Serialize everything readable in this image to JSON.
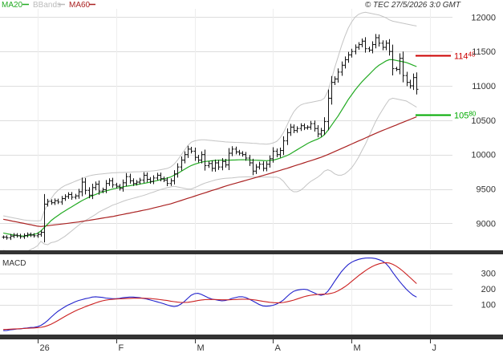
{
  "header": {
    "copyright": "© TEC 27/5/2026 3:0 GMT"
  },
  "legend": [
    {
      "label": "MA20",
      "color": "#22aa22"
    },
    {
      "label": "BBands",
      "color": "#bbbbbb"
    },
    {
      "label": "MA60",
      "color": "#aa2222"
    }
  ],
  "colors": {
    "price": "#111111",
    "ma20": "#22aa22",
    "ma60": "#aa2222",
    "bbands": "#c4c4c4",
    "macd": "#2222cc",
    "signal": "#cc2222",
    "resistance": "#cc0000",
    "support": "#00aa00",
    "grid": "#dddddd"
  },
  "chart_data": [
    {
      "type": "ohlc",
      "panel": "price",
      "y_ticks": [
        9000,
        9500,
        10000,
        10500,
        11000,
        11500,
        12000
      ],
      "y_tick_labels": [
        "9000",
        "9500",
        "10000",
        "10500",
        "11000",
        "11500",
        "12000"
      ],
      "ylim": [
        8620,
        12120
      ],
      "x_labels": [
        "26",
        "F",
        "M",
        "A",
        "M",
        "J"
      ],
      "x_label_index": [
        10,
        33,
        56,
        79,
        102,
        125
      ],
      "n_slots": 132,
      "levels": [
        {
          "name": "resistance",
          "value": 11448,
          "label_int": "114",
          "label_dec": "48"
        },
        {
          "name": "support",
          "value": 10580,
          "label_int": "105",
          "label_dec": "80"
        }
      ],
      "close": [
        8800,
        8790,
        8815,
        8830,
        8820,
        8805,
        8825,
        8840,
        8830,
        8820,
        8840,
        8870,
        9280,
        9320,
        9300,
        9330,
        9310,
        9360,
        9390,
        9420,
        9380,
        9400,
        9460,
        9600,
        9480,
        9410,
        9520,
        9570,
        9470,
        9490,
        9580,
        9620,
        9560,
        9540,
        9510,
        9590,
        9680,
        9620,
        9580,
        9600,
        9630,
        9700,
        9640,
        9610,
        9660,
        9700,
        9650,
        9630,
        9580,
        9620,
        9720,
        9820,
        9920,
        10000,
        10080,
        10050,
        9960,
        9920,
        10000,
        9840,
        9870,
        9800,
        9880,
        9820,
        9900,
        9850,
        10020,
        10080,
        10040,
        10020,
        10000,
        9950,
        9880,
        9760,
        9820,
        9860,
        9800,
        9860,
        9940,
        10050,
        10000,
        10060,
        10200,
        10320,
        10400,
        10350,
        10380,
        10420,
        10390,
        10400,
        10450,
        10380,
        10300,
        10350,
        10480,
        10820,
        11050,
        11100,
        11200,
        11300,
        11380,
        11450,
        11500,
        11560,
        11600,
        11650,
        11540,
        11520,
        11600,
        11700,
        11620,
        11560,
        11620,
        11500,
        11250,
        11240,
        11400,
        11150,
        11050,
        11000,
        11120,
        10950
      ],
      "ma20": [
        8860,
        8850,
        8840,
        8830,
        8822,
        8818,
        8815,
        8820,
        8830,
        8840,
        8855,
        8890,
        8940,
        8990,
        9040,
        9080,
        9115,
        9150,
        9180,
        9210,
        9240,
        9270,
        9300,
        9330,
        9355,
        9380,
        9400,
        9420,
        9440,
        9455,
        9470,
        9485,
        9500,
        9510,
        9520,
        9530,
        9540,
        9548,
        9556,
        9564,
        9572,
        9580,
        9590,
        9600,
        9610,
        9622,
        9635,
        9648,
        9660,
        9675,
        9700,
        9725,
        9755,
        9785,
        9815,
        9840,
        9860,
        9875,
        9890,
        9900,
        9905,
        9910,
        9915,
        9918,
        9920,
        9920,
        9920,
        9921,
        9922,
        9924,
        9925,
        9924,
        9922,
        9920,
        9918,
        9916,
        9914,
        9912,
        9915,
        9920,
        9932,
        9948,
        9966,
        9985,
        10010,
        10040,
        10070,
        10100,
        10130,
        10160,
        10185,
        10205,
        10225,
        10250,
        10290,
        10350,
        10420,
        10490,
        10560,
        10640,
        10720,
        10800,
        10870,
        10940,
        11000,
        11060,
        11110,
        11160,
        11210,
        11260,
        11300,
        11330,
        11360,
        11380,
        11380,
        11370,
        11360,
        11350,
        11340,
        11320,
        11300,
        11280
      ],
      "ma60": [
        9060,
        9050,
        9040,
        9030,
        9020,
        9010,
        9000,
        8990,
        8980,
        8970,
        8960,
        8955,
        8960,
        8966,
        8972,
        8978,
        8984,
        8990,
        8996,
        9002,
        9008,
        9014,
        9020,
        9028,
        9036,
        9044,
        9052,
        9060,
        9068,
        9076,
        9084,
        9092,
        9100,
        9110,
        9120,
        9130,
        9140,
        9150,
        9160,
        9170,
        9180,
        9190,
        9200,
        9212,
        9224,
        9236,
        9248,
        9260,
        9272,
        9284,
        9300,
        9316,
        9332,
        9348,
        9364,
        9380,
        9396,
        9412,
        9428,
        9444,
        9460,
        9476,
        9492,
        9508,
        9524,
        9540,
        9556,
        9570,
        9584,
        9598,
        9612,
        9626,
        9640,
        9654,
        9668,
        9682,
        9696,
        9710,
        9725,
        9740,
        9755,
        9770,
        9785,
        9800,
        9816,
        9832,
        9848,
        9864,
        9880,
        9896,
        9912,
        9928,
        9944,
        9960,
        9980,
        10000,
        10022,
        10044,
        10066,
        10088,
        10110,
        10132,
        10154,
        10176,
        10198,
        10220,
        10242,
        10264,
        10286,
        10308,
        10330,
        10350,
        10370,
        10390,
        10410,
        10430,
        10450,
        10470,
        10490,
        10510,
        10530,
        10550
      ],
      "bb_upper": [
        9110,
        9100,
        9090,
        9080,
        9070,
        9060,
        9050,
        9045,
        9040,
        9038,
        9036,
        9040,
        9180,
        9290,
        9360,
        9430,
        9480,
        9520,
        9550,
        9570,
        9590,
        9610,
        9630,
        9650,
        9670,
        9690,
        9700,
        9710,
        9715,
        9720,
        9725,
        9730,
        9735,
        9738,
        9740,
        9740,
        9742,
        9745,
        9748,
        9750,
        9752,
        9755,
        9758,
        9760,
        9765,
        9770,
        9780,
        9790,
        9800,
        9820,
        9860,
        9920,
        9990,
        10060,
        10130,
        10180,
        10200,
        10210,
        10215,
        10215,
        10210,
        10205,
        10200,
        10195,
        10190,
        10185,
        10182,
        10180,
        10178,
        10176,
        10175,
        10172,
        10168,
        10165,
        10162,
        10158,
        10155,
        10152,
        10158,
        10170,
        10190,
        10240,
        10320,
        10420,
        10530,
        10620,
        10680,
        10720,
        10740,
        10750,
        10760,
        10770,
        10780,
        10790,
        10820,
        10920,
        11080,
        11260,
        11420,
        11580,
        11720,
        11840,
        11930,
        12000,
        12040,
        12060,
        12070,
        12060,
        12050,
        12040,
        12030,
        12010,
        11990,
        11960,
        11940,
        11930,
        11920,
        11910,
        11900,
        11890,
        11880,
        11870
      ],
      "bb_lower": [
        8610,
        8600,
        8590,
        8580,
        8575,
        8576,
        8580,
        8595,
        8620,
        8642,
        8674,
        8740,
        8700,
        8690,
        8720,
        8730,
        8750,
        8780,
        8810,
        8850,
        8890,
        8930,
        8970,
        9010,
        9040,
        9070,
        9100,
        9130,
        9165,
        9190,
        9215,
        9240,
        9265,
        9282,
        9300,
        9320,
        9338,
        9351,
        9364,
        9378,
        9392,
        9405,
        9422,
        9440,
        9455,
        9474,
        9490,
        9506,
        9520,
        9530,
        9540,
        9530,
        9520,
        9510,
        9500,
        9500,
        9520,
        9540,
        9565,
        9585,
        9600,
        9615,
        9630,
        9641,
        9650,
        9655,
        9658,
        9662,
        9666,
        9672,
        9675,
        9676,
        9676,
        9675,
        9674,
        9674,
        9673,
        9672,
        9672,
        9670,
        9674,
        9656,
        9612,
        9550,
        9490,
        9460,
        9460,
        9480,
        9520,
        9570,
        9610,
        9640,
        9670,
        9710,
        9760,
        9780,
        9760,
        9720,
        9700,
        9700,
        9720,
        9760,
        9810,
        9880,
        9960,
        10060,
        10150,
        10260,
        10370,
        10480,
        10570,
        10650,
        10730,
        10800,
        10820,
        10810,
        10800,
        10790,
        10780,
        10750,
        10720,
        10690
      ]
    },
    {
      "type": "line",
      "panel": "macd",
      "title": "MACD",
      "y_ticks": [
        100,
        200,
        300
      ],
      "y_tick_labels": [
        "100",
        "200",
        "300"
      ],
      "ylim": [
        -90,
        420
      ],
      "series": [
        {
          "name": "MACD",
          "color": "#2222cc",
          "values": [
            -65,
            -64,
            -60,
            -58,
            -55,
            -54,
            -50,
            -48,
            -45,
            -44,
            -40,
            -32,
            -18,
            0,
            20,
            40,
            58,
            72,
            86,
            98,
            108,
            118,
            126,
            132,
            138,
            142,
            148,
            150,
            148,
            146,
            142,
            140,
            138,
            138,
            140,
            144,
            146,
            148,
            148,
            146,
            144,
            140,
            136,
            130,
            124,
            118,
            112,
            106,
            98,
            92,
            88,
            92,
            104,
            120,
            140,
            160,
            170,
            172,
            165,
            155,
            144,
            136,
            132,
            128,
            124,
            126,
            132,
            140,
            145,
            150,
            150,
            145,
            135,
            124,
            112,
            100,
            92,
            90,
            92,
            96,
            104,
            115,
            130,
            150,
            170,
            185,
            192,
            196,
            198,
            195,
            185,
            175,
            165,
            160,
            165,
            185,
            215,
            248,
            280,
            310,
            335,
            355,
            370,
            380,
            388,
            393,
            396,
            397,
            396,
            393,
            386,
            377,
            362,
            338,
            306,
            276,
            248,
            222,
            198,
            178,
            160,
            148
          ]
        },
        {
          "name": "Signal",
          "color": "#cc2222",
          "values": [
            -58,
            -57,
            -56,
            -55,
            -54,
            -53,
            -52,
            -50,
            -49,
            -48,
            -46,
            -44,
            -40,
            -33,
            -24,
            -13,
            -1,
            12,
            25,
            37,
            48,
            59,
            69,
            78,
            87,
            95,
            103,
            111,
            118,
            124,
            129,
            132,
            134,
            136,
            137,
            138,
            139,
            140,
            141,
            141,
            141,
            141,
            140,
            139,
            137,
            135,
            132,
            129,
            126,
            122,
            119,
            116,
            114,
            114,
            115,
            118,
            122,
            126,
            130,
            132,
            133,
            133,
            133,
            132,
            131,
            131,
            131,
            132,
            133,
            134,
            135,
            135,
            134,
            132,
            129,
            125,
            121,
            118,
            115,
            113,
            112,
            112,
            114,
            118,
            123,
            129,
            136,
            143,
            150,
            156,
            160,
            163,
            165,
            166,
            167,
            168,
            172,
            178,
            188,
            200,
            214,
            230,
            248,
            266,
            284,
            300,
            316,
            330,
            342,
            352,
            360,
            365,
            367,
            365,
            357,
            345,
            330,
            313,
            294,
            274,
            254,
            234
          ]
        }
      ]
    }
  ]
}
